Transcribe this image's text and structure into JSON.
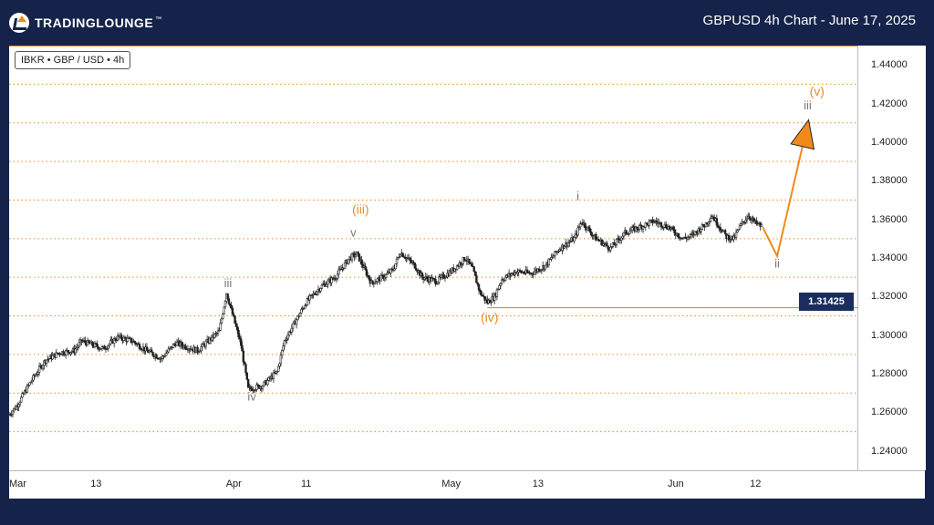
{
  "header": {
    "logo_text": "TRADINGLOUNGE",
    "logo_tm": "™",
    "title": "GBPUSD 4h Chart - June 17, 2025"
  },
  "symbol_label": "IBKR • GBP / USD • 4h",
  "price_tag": "1.31425",
  "colors": {
    "accent": "#f08a1c",
    "navy": "#15234a",
    "candle": "#222222",
    "wave_gray": "#777777"
  },
  "chart_data": {
    "type": "candlestick",
    "ylim": [
      1.23,
      1.45
    ],
    "yticks": [
      "1.44000",
      "1.42000",
      "1.40000",
      "1.38000",
      "1.36000",
      "1.34000",
      "1.32000",
      "1.30000",
      "1.28000",
      "1.26000",
      "1.24000"
    ],
    "ytick_values": [
      1.44,
      1.42,
      1.4,
      1.38,
      1.36,
      1.34,
      1.32,
      1.3,
      1.28,
      1.26,
      1.24
    ],
    "xticks": [
      "Mar",
      "13",
      "Apr",
      "11",
      "May",
      "13",
      "Jun",
      "12"
    ],
    "xtick_days": [
      0,
      12,
      31,
      41,
      61,
      73,
      92,
      103
    ],
    "x_range_days": [
      0,
      107
    ],
    "grid_lines": [
      1.25,
      1.27,
      1.29,
      1.31,
      1.33,
      1.35,
      1.37,
      1.39,
      1.41,
      1.43
    ],
    "price_path": [
      [
        0,
        1.259
      ],
      [
        1,
        1.263
      ],
      [
        3,
        1.276
      ],
      [
        5,
        1.287
      ],
      [
        7,
        1.291
      ],
      [
        9,
        1.292
      ],
      [
        10,
        1.297
      ],
      [
        13,
        1.293
      ],
      [
        15,
        1.299
      ],
      [
        17,
        1.297
      ],
      [
        19,
        1.292
      ],
      [
        21,
        1.288
      ],
      [
        23,
        1.296
      ],
      [
        26,
        1.292
      ],
      [
        29,
        1.302
      ],
      [
        30,
        1.322
      ],
      [
        32,
        1.295
      ],
      [
        33,
        1.272
      ],
      [
        35,
        1.274
      ],
      [
        37,
        1.281
      ],
      [
        38,
        1.297
      ],
      [
        41,
        1.317
      ],
      [
        43,
        1.325
      ],
      [
        45,
        1.33
      ],
      [
        47,
        1.34
      ],
      [
        48,
        1.342
      ],
      [
        50,
        1.327
      ],
      [
        52,
        1.331
      ],
      [
        53,
        1.334
      ],
      [
        54,
        1.343
      ],
      [
        56,
        1.336
      ],
      [
        57,
        1.33
      ],
      [
        59,
        1.328
      ],
      [
        61,
        1.333
      ],
      [
        63,
        1.34
      ],
      [
        64,
        1.334
      ],
      [
        65,
        1.322
      ],
      [
        66,
        1.317
      ],
      [
        67,
        1.32
      ],
      [
        68,
        1.329
      ],
      [
        70,
        1.333
      ],
      [
        72,
        1.332
      ],
      [
        74,
        1.336
      ],
      [
        76,
        1.345
      ],
      [
        78,
        1.35
      ],
      [
        79,
        1.359
      ],
      [
        81,
        1.35
      ],
      [
        83,
        1.345
      ],
      [
        85,
        1.353
      ],
      [
        87,
        1.356
      ],
      [
        89,
        1.359
      ],
      [
        91,
        1.356
      ],
      [
        93,
        1.35
      ],
      [
        94,
        1.351
      ],
      [
        96,
        1.357
      ],
      [
        97,
        1.362
      ],
      [
        99,
        1.351
      ],
      [
        100,
        1.35
      ],
      [
        101,
        1.357
      ],
      [
        102,
        1.362
      ],
      [
        103,
        1.358
      ],
      [
        104,
        1.356
      ]
    ],
    "horizontal_level": {
      "value": 1.31425,
      "from_day": 66
    },
    "projection": [
      [
        104,
        1.356
      ],
      [
        106,
        1.341
      ],
      [
        110,
        1.406
      ]
    ],
    "annotations": [
      {
        "label": "iii",
        "day": 30.2,
        "value": 1.325,
        "color": "gray"
      },
      {
        "label": "iv",
        "day": 33.5,
        "value": 1.266,
        "color": "gray"
      },
      {
        "label": "v",
        "day": 47.5,
        "value": 1.351,
        "color": "gray"
      },
      {
        "label": "(iii)",
        "day": 48.5,
        "value": 1.363,
        "color": "orange"
      },
      {
        "label": "(iv)",
        "day": 66.3,
        "value": 1.307,
        "color": "orange"
      },
      {
        "label": "i",
        "day": 78.5,
        "value": 1.37,
        "color": "gray"
      },
      {
        "label": "ii",
        "day": 106.0,
        "value": 1.335,
        "color": "gray"
      },
      {
        "label": "iii",
        "day": 110.2,
        "value": 1.417,
        "color": "gray"
      },
      {
        "label": "(v)",
        "day": 111.5,
        "value": 1.424,
        "color": "orange"
      }
    ]
  }
}
